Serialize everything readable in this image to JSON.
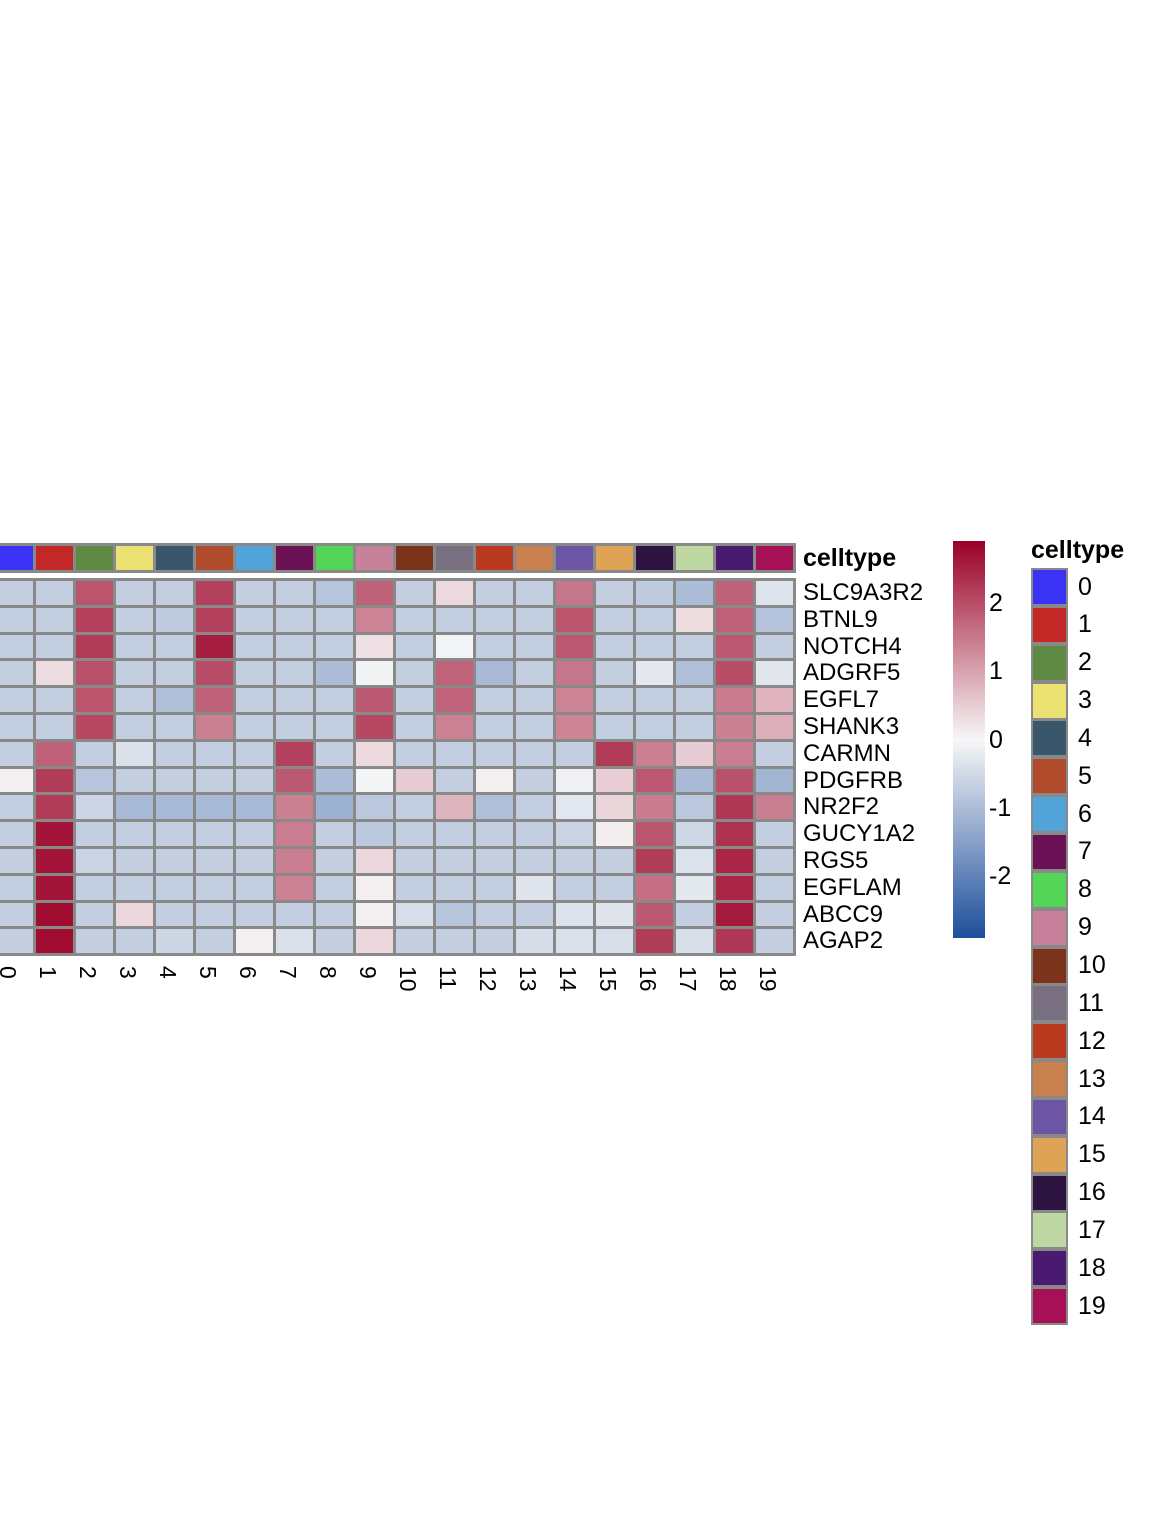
{
  "chart_data": {
    "type": "heatmap",
    "rows": [
      "SLC9A3R2",
      "BTNL9",
      "NOTCH4",
      "ADGRF5",
      "EGFL7",
      "SHANK3",
      "CARMN",
      "PDGFRB",
      "NR2F2",
      "GUCY1A2",
      "RGS5",
      "EGFLAM",
      "ABCC9",
      "AGAP2"
    ],
    "columns": [
      "0",
      "1",
      "2",
      "3",
      "4",
      "5",
      "6",
      "7",
      "8",
      "9",
      "10",
      "11",
      "12",
      "13",
      "14",
      "15",
      "16",
      "17",
      "18",
      "19"
    ],
    "values": [
      [
        -0.7,
        -0.7,
        1.9,
        -0.7,
        -0.7,
        2.15,
        -0.7,
        -0.7,
        -0.85,
        1.75,
        -0.7,
        0.35,
        -0.7,
        -0.7,
        1.5,
        -0.7,
        -0.75,
        -1.0,
        1.75,
        -0.33
      ],
      [
        -0.7,
        -0.7,
        2.15,
        -0.7,
        -0.75,
        2.15,
        -0.7,
        -0.7,
        -0.7,
        1.35,
        -0.7,
        -0.7,
        -0.7,
        -0.7,
        1.9,
        -0.7,
        -0.7,
        0.3,
        1.75,
        -0.9
      ],
      [
        -0.7,
        -0.7,
        2.2,
        -0.7,
        -0.7,
        2.55,
        -0.7,
        -0.7,
        -0.7,
        0.27,
        -0.7,
        -0.05,
        -0.7,
        -0.7,
        1.88,
        -0.7,
        -0.7,
        -0.7,
        1.85,
        -0.7
      ],
      [
        -0.7,
        0.31,
        1.95,
        -0.7,
        -0.7,
        2.0,
        -0.7,
        -0.7,
        -1.0,
        -0.07,
        -0.7,
        1.74,
        -1.05,
        -0.7,
        1.5,
        -0.7,
        -0.26,
        -0.95,
        2.0,
        -0.28
      ],
      [
        -0.7,
        -0.7,
        1.9,
        -0.7,
        -0.95,
        1.75,
        -0.7,
        -0.7,
        -0.7,
        1.85,
        -0.7,
        1.74,
        -0.7,
        -0.7,
        1.35,
        -0.7,
        -0.7,
        -0.7,
        1.45,
        0.8
      ],
      [
        -0.7,
        -0.7,
        2.05,
        -0.7,
        -0.7,
        1.4,
        -0.7,
        -0.7,
        -0.7,
        2.05,
        -0.7,
        1.37,
        -0.7,
        -0.7,
        1.35,
        -0.7,
        -0.7,
        -0.7,
        1.38,
        0.85
      ],
      [
        -0.7,
        1.75,
        -0.7,
        -0.37,
        -0.7,
        -0.7,
        -0.7,
        2.15,
        -0.7,
        0.34,
        -0.7,
        -0.7,
        -0.7,
        -0.7,
        -0.7,
        2.2,
        1.4,
        0.5,
        1.42,
        -0.7
      ],
      [
        0.09,
        2.2,
        -0.85,
        -0.7,
        -0.7,
        -0.7,
        -0.7,
        1.85,
        -1.0,
        -0.04,
        0.5,
        -0.7,
        0.1,
        -0.7,
        -0.12,
        0.48,
        1.88,
        -1.05,
        1.95,
        -1.14
      ],
      [
        -0.7,
        2.2,
        -0.58,
        -1.05,
        -1.05,
        -1.05,
        -1.05,
        1.4,
        -1.2,
        -0.8,
        -0.7,
        0.79,
        -0.95,
        -0.7,
        -0.27,
        0.4,
        1.45,
        -0.8,
        2.25,
        1.42
      ],
      [
        -0.7,
        2.65,
        -0.7,
        -0.7,
        -0.7,
        -0.7,
        -0.7,
        1.43,
        -0.7,
        -0.8,
        -0.7,
        -0.7,
        -0.7,
        -0.7,
        -0.6,
        0.12,
        1.9,
        -0.55,
        2.3,
        -0.7
      ],
      [
        -0.7,
        2.65,
        -0.62,
        -0.7,
        -0.7,
        -0.7,
        -0.7,
        1.42,
        -0.7,
        0.37,
        -0.7,
        -0.7,
        -0.7,
        -0.7,
        -0.7,
        -0.7,
        2.2,
        -0.35,
        2.45,
        -0.7
      ],
      [
        -0.7,
        2.65,
        -0.7,
        -0.7,
        -0.7,
        -0.7,
        -0.7,
        1.37,
        -0.7,
        0.08,
        -0.7,
        -0.7,
        -0.7,
        -0.31,
        -0.7,
        -0.7,
        1.6,
        -0.26,
        2.45,
        -0.7
      ],
      [
        -0.7,
        2.75,
        -0.7,
        0.38,
        -0.7,
        -0.7,
        -0.7,
        -0.7,
        -0.7,
        0.08,
        -0.43,
        -0.84,
        -0.7,
        -0.7,
        -0.35,
        -0.31,
        1.85,
        -0.7,
        2.6,
        -0.7
      ],
      [
        -0.7,
        2.75,
        -0.7,
        -0.7,
        -0.56,
        -0.7,
        0.09,
        -0.4,
        -0.7,
        0.37,
        -0.7,
        -0.7,
        -0.7,
        -0.45,
        -0.4,
        -0.43,
        2.2,
        -0.41,
        2.25,
        -0.7
      ]
    ],
    "color_scale": {
      "domain": [
        -2.9,
        0,
        2.9
      ],
      "low": "#1E4E9C",
      "mid": "#F7F7F7",
      "high": "#9B0026",
      "legend_ticks": [
        2,
        1,
        0,
        -1,
        -2
      ]
    },
    "grid_color": "#898989",
    "column_annotation": {
      "title": "celltype",
      "values": [
        "0",
        "1",
        "2",
        "3",
        "4",
        "5",
        "6",
        "7",
        "8",
        "9",
        "10",
        "11",
        "12",
        "13",
        "14",
        "15",
        "16",
        "17",
        "18",
        "19"
      ],
      "colors": [
        "#3A33F5",
        "#C32827",
        "#5F8A44",
        "#EBE273",
        "#3A566B",
        "#B04C2C",
        "#52A3D8",
        "#6B1256",
        "#55D555",
        "#C7819A",
        "#7B341B",
        "#787080",
        "#BA3A1F",
        "#C8804E",
        "#6B55A4",
        "#DFA355",
        "#2B1540",
        "#BED7A3",
        "#4A1A70",
        "#A51056"
      ]
    },
    "legend": {
      "title": "celltype",
      "labels": [
        "0",
        "1",
        "2",
        "3",
        "4",
        "5",
        "6",
        "7",
        "8",
        "9",
        "10",
        "11",
        "12",
        "13",
        "14",
        "15",
        "16",
        "17",
        "18",
        "19"
      ]
    }
  }
}
